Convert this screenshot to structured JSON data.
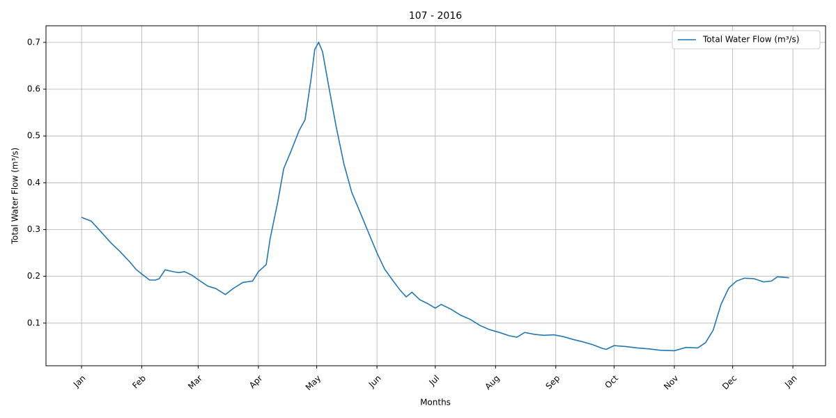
{
  "chart_data": {
    "type": "line",
    "title": "107 - 2016",
    "xlabel": "Months",
    "ylabel": "Total Water Flow (m³/s)",
    "x": [
      0,
      5,
      10,
      15,
      20,
      25,
      28,
      31,
      35,
      38,
      40,
      43,
      47,
      50,
      53,
      57,
      60,
      65,
      69,
      74,
      78,
      83,
      88,
      91,
      95,
      97,
      101,
      104,
      108,
      112,
      115,
      118,
      120,
      122,
      124,
      127,
      131,
      135,
      139,
      143,
      148,
      152,
      156,
      160,
      164,
      167,
      170,
      174,
      178,
      182,
      185,
      190,
      195,
      200,
      205,
      210,
      215,
      220,
      224,
      228,
      233,
      238,
      243,
      248,
      253,
      258,
      263,
      268,
      270,
      274,
      280,
      286,
      292,
      298,
      305,
      311,
      317,
      321,
      325,
      329,
      333,
      337,
      341,
      346,
      351,
      355,
      358,
      364
    ],
    "series": [
      {
        "name": "Total Water Flow (m³/s)",
        "color": "#1f77b4",
        "values": [
          0.326,
          0.318,
          0.295,
          0.272,
          0.252,
          0.23,
          0.215,
          0.205,
          0.192,
          0.192,
          0.195,
          0.214,
          0.21,
          0.208,
          0.21,
          0.202,
          0.193,
          0.179,
          0.174,
          0.161,
          0.174,
          0.187,
          0.19,
          0.21,
          0.225,
          0.28,
          0.36,
          0.43,
          0.47,
          0.512,
          0.535,
          0.62,
          0.685,
          0.7,
          0.68,
          0.61,
          0.52,
          0.44,
          0.38,
          0.34,
          0.29,
          0.25,
          0.215,
          0.192,
          0.17,
          0.156,
          0.166,
          0.15,
          0.142,
          0.132,
          0.14,
          0.13,
          0.117,
          0.108,
          0.095,
          0.086,
          0.08,
          0.073,
          0.07,
          0.08,
          0.076,
          0.074,
          0.075,
          0.071,
          0.065,
          0.06,
          0.054,
          0.046,
          0.044,
          0.052,
          0.05,
          0.047,
          0.045,
          0.042,
          0.041,
          0.048,
          0.047,
          0.058,
          0.085,
          0.14,
          0.175,
          0.19,
          0.196,
          0.195,
          0.188,
          0.19,
          0.199,
          0.197
        ]
      }
    ],
    "xlim": [
      -18.3,
      382.8
    ],
    "ylim": [
      0.0089,
      0.7355
    ],
    "xticks": [
      {
        "value": 0,
        "label": "Jan"
      },
      {
        "value": 31,
        "label": "Feb"
      },
      {
        "value": 60,
        "label": "Mar"
      },
      {
        "value": 91,
        "label": "Apr"
      },
      {
        "value": 121,
        "label": "May"
      },
      {
        "value": 152,
        "label": "Jun"
      },
      {
        "value": 182,
        "label": "Jul"
      },
      {
        "value": 213,
        "label": "Aug"
      },
      {
        "value": 244,
        "label": "Sep"
      },
      {
        "value": 274,
        "label": "Oct"
      },
      {
        "value": 305,
        "label": "Nov"
      },
      {
        "value": 335,
        "label": "Dec"
      },
      {
        "value": 366,
        "label": "Jan"
      }
    ],
    "yticks": [
      0.1,
      0.2,
      0.3,
      0.4,
      0.5,
      0.6,
      0.7
    ],
    "grid": true,
    "legend": "upper right"
  }
}
